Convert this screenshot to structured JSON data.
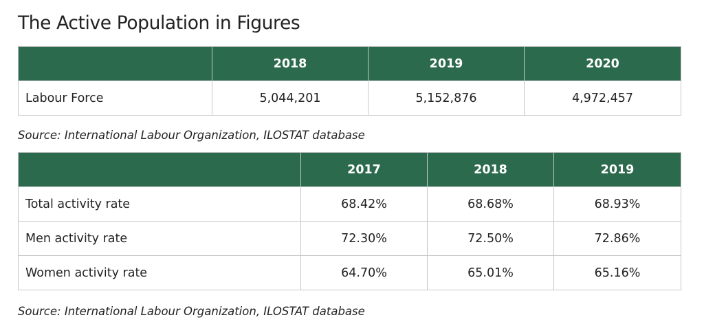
{
  "title": "The Active Population in Figures",
  "accent_color": "#2b6a4d",
  "labour_table": {
    "headers": [
      "",
      "2018",
      "2019",
      "2020"
    ],
    "rows": [
      {
        "label": "Labour Force",
        "values": [
          "5,044,201",
          "5,152,876",
          "4,972,457"
        ]
      }
    ],
    "source": "Source: International Labour Organization, ILOSTAT database"
  },
  "activity_table": {
    "headers": [
      "",
      "2017",
      "2018",
      "2019"
    ],
    "rows": [
      {
        "label": "Total activity rate",
        "values": [
          "68.42%",
          "68.68%",
          "68.93%"
        ]
      },
      {
        "label": "Men activity rate",
        "values": [
          "72.30%",
          "72.50%",
          "72.86%"
        ]
      },
      {
        "label": "Women activity rate",
        "values": [
          "64.70%",
          "65.01%",
          "65.16%"
        ]
      }
    ],
    "source": "Source: International Labour Organization, ILOSTAT database"
  }
}
